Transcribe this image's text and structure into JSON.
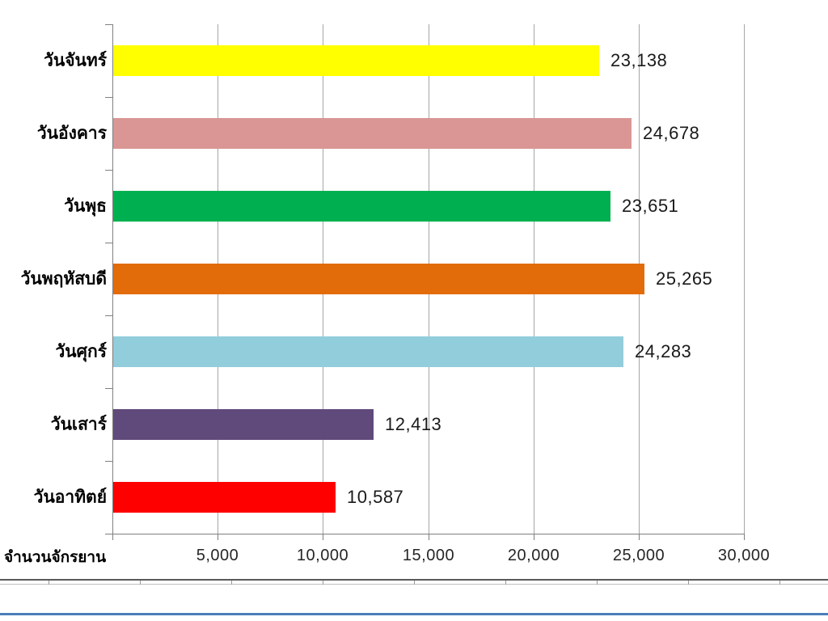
{
  "chart_data": {
    "type": "bar",
    "orientation": "horizontal",
    "title": "",
    "xlabel": "จำนวนจักรยาน",
    "ylabel": "",
    "categories": [
      "วันจันทร์",
      "วันอังคาร",
      "วันพุธ",
      "วันพฤหัสบดี",
      "วันศุกร์",
      "วันเสาร์",
      "วันอาทิตย์"
    ],
    "values": [
      23138,
      24678,
      23651,
      25265,
      24283,
      12413,
      10587
    ],
    "value_labels": [
      "23,138",
      "24,678",
      "23,651",
      "25,265",
      "24,283",
      "12,413",
      "10,587"
    ],
    "bar_colors": [
      "#ffff00",
      "#d99694",
      "#00b050",
      "#e36c0a",
      "#92cddc",
      "#604a7b",
      "#ff0000"
    ],
    "x_tick_values": [
      5000,
      10000,
      15000,
      20000,
      25000,
      30000
    ],
    "x_tick_labels": [
      "5,000",
      "10,000",
      "15,000",
      "20,000",
      "25,000",
      "30,000"
    ],
    "xlim": [
      0,
      30000
    ],
    "grid": "vertical-gridlines",
    "legend": "none",
    "data_labels": "outside-end"
  },
  "colors": {
    "background": "#ffffff",
    "gridline": "#a6a6a6",
    "axis_line": "#808080",
    "label_text": "#1a1a1a",
    "sheet_border_dark": "#595959",
    "sheet_border_light": "#bfbfbf",
    "window_bottom_blue": "#4a7ebb"
  }
}
